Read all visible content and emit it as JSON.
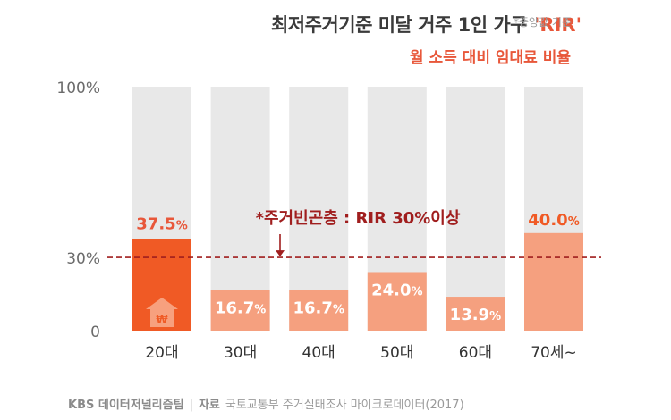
{
  "header": {
    "title": "최저주거기준 미달 거주 1인 가구",
    "highlight": "'RIR'",
    "note": "*중앙값 기준",
    "subtitle": "월 소득 대비 임대료 비율"
  },
  "chart_data": {
    "type": "bar",
    "categories": [
      "20대",
      "30대",
      "40대",
      "50대",
      "60대",
      "70세~"
    ],
    "values": [
      37.5,
      16.7,
      16.7,
      24.0,
      13.9,
      40.0
    ],
    "value_labels": [
      "37.5%",
      "16.7%",
      "16.7%",
      "24.0%",
      "13.9%",
      "40.0%"
    ],
    "ylim": [
      0,
      100
    ],
    "yticks": [
      "0",
      "30%",
      "100%"
    ],
    "ytick_values": [
      0,
      30,
      100
    ],
    "reference_line": {
      "value": 30,
      "label": "*주거빈곤층 : RIR 30%이상"
    },
    "highlight_index": 0,
    "highlight_icon_symbol": "₩",
    "colors": {
      "track": "#e8e8e8",
      "bar": "#f5a07f",
      "highlight_bar": "#f05a25",
      "highlight_label": "#e8573a",
      "reference": "#a01e1e",
      "axis_text": "#6b6b6b",
      "category_text": "#333333"
    }
  },
  "footer": {
    "brand": "KBS 데이터저널리즘팀",
    "divider": "|",
    "source_label": "자료",
    "source": "국토교통부 주거실태조사 마이크로데이터(2017)"
  }
}
